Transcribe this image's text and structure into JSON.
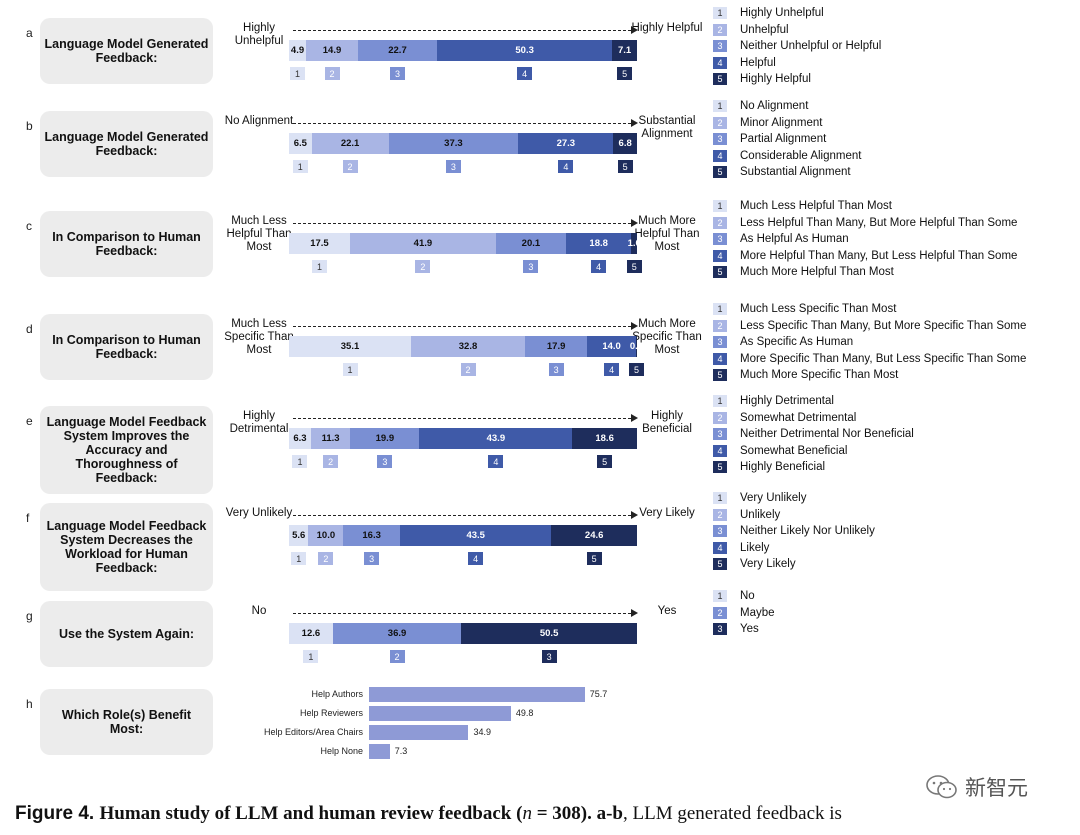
{
  "colors": {
    "c1": "#dbe2f4",
    "c2": "#a9b5e4",
    "c3": "#7a8fd3",
    "c4": "#3f5aa8",
    "c5": "#1e2d5c",
    "box": "#ececec",
    "hbar": "#8e9ad6"
  },
  "chart_data": [
    {
      "type": "bar",
      "subtype": "stacked-horizontal-100",
      "panel": "a",
      "question": "Language Model Generated Feedback:",
      "left_anchor": "Highly Unhelpful",
      "right_anchor": "Highly Helpful",
      "values": [
        4.9,
        14.9,
        22.7,
        50.3,
        7.1
      ],
      "value_labels": [
        "4.9",
        "14.9",
        "22.7",
        "50.3",
        "7.1"
      ],
      "legend": [
        "Highly Unhelpful",
        "Unhelpful",
        "Neither Unhelpful or Helpful",
        "Helpful",
        "Highly Helpful"
      ]
    },
    {
      "type": "bar",
      "subtype": "stacked-horizontal-100",
      "panel": "b",
      "question": "Language Model Generated Feedback:",
      "left_anchor": "No Alignment",
      "right_anchor": "Substantial Alignment",
      "values": [
        6.5,
        22.1,
        37.3,
        27.3,
        6.8
      ],
      "value_labels": [
        "6.5",
        "22.1",
        "37.3",
        "27.3",
        "6.8"
      ],
      "legend": [
        "No Alignment",
        "Minor Alignment",
        "Partial Alignment",
        "Considerable Alignment",
        "Substantial Alignment"
      ]
    },
    {
      "type": "bar",
      "subtype": "stacked-horizontal-100",
      "panel": "c",
      "question": "In Comparison to Human Feedback:",
      "left_anchor": "Much Less Helpful Than Most",
      "right_anchor": "Much More Helpful Than Most",
      "values": [
        17.5,
        41.9,
        20.1,
        18.8,
        1.6
      ],
      "value_labels": [
        "17.5",
        "41.9",
        "20.1",
        "18.8",
        "1.6"
      ],
      "legend": [
        "Much Less Helpful Than Most",
        "Less Helpful Than Many, But More Helpful Than Some",
        "As Helpful As Human",
        "More Helpful Than Many, But Less Helpful Than Some",
        "Much More Helpful Than Most"
      ]
    },
    {
      "type": "bar",
      "subtype": "stacked-horizontal-100",
      "panel": "d",
      "question": "In Comparison to Human Feedback:",
      "left_anchor": "Much Less Specific Than Most",
      "right_anchor": "Much More Specific Than Most",
      "values": [
        35.1,
        32.8,
        17.9,
        14.0,
        0.3
      ],
      "value_labels": [
        "35.1",
        "32.8",
        "17.9",
        "14.0",
        "0.3"
      ],
      "legend": [
        "Much Less Specific Than Most",
        "Less Specific Than Many, But More Specific Than Some",
        "As Specific As Human",
        "More Specific Than Many, But Less Specific Than Some",
        "Much More Specific Than Most"
      ]
    },
    {
      "type": "bar",
      "subtype": "stacked-horizontal-100",
      "panel": "e",
      "question": "Language Model Feedback System Improves the Accuracy and Thoroughness of Feedback:",
      "left_anchor": "Highly Detrimental",
      "right_anchor": "Highly Beneficial",
      "values": [
        6.3,
        11.3,
        19.9,
        43.9,
        18.6
      ],
      "value_labels": [
        "6.3",
        "11.3",
        "19.9",
        "43.9",
        "18.6"
      ],
      "legend": [
        "Highly Detrimental",
        "Somewhat Detrimental",
        "Neither Detrimental Nor Beneficial",
        "Somewhat Beneficial",
        "Highly Beneficial"
      ]
    },
    {
      "type": "bar",
      "subtype": "stacked-horizontal-100",
      "panel": "f",
      "question": "Language Model Feedback System Decreases the Workload for Human Feedback:",
      "left_anchor": "Very Unlikely",
      "right_anchor": "Very Likely",
      "values": [
        5.6,
        10.0,
        16.3,
        43.5,
        24.6
      ],
      "value_labels": [
        "5.6",
        "10.0",
        "16.3",
        "43.5",
        "24.6"
      ],
      "legend": [
        "Very Unlikely",
        "Unlikely",
        "Neither Likely Nor Unlikely",
        "Likely",
        "Very Likely"
      ]
    },
    {
      "type": "bar",
      "subtype": "stacked-horizontal-100",
      "panel": "g",
      "question": "Use the System Again:",
      "left_anchor": "No",
      "right_anchor": "Yes",
      "values": [
        12.6,
        36.9,
        50.5
      ],
      "value_labels": [
        "12.6",
        "36.9",
        "50.5"
      ],
      "legend": [
        "No",
        "Maybe",
        "Yes"
      ]
    },
    {
      "type": "bar",
      "subtype": "horizontal",
      "panel": "h",
      "question": "Which Role(s) Benefit Most:",
      "categories": [
        "Help Authors",
        "Help Reviewers",
        "Help Editors/Area Chairs",
        "Help None"
      ],
      "values": [
        75.7,
        49.8,
        34.9,
        7.3
      ],
      "value_labels": [
        "75.7",
        "49.8",
        "34.9",
        "7.3"
      ]
    }
  ],
  "caption": {
    "figure_label": "Figure 4.",
    "bold_text": "Human study of LLM and human review feedback (",
    "n_symbol": "n",
    "n_value": " = 308).",
    "bold_ab": " a-b",
    "rest": ", LLM generated feedback is"
  },
  "watermark": {
    "text": "新智元",
    "icon": "wechat-icon"
  }
}
